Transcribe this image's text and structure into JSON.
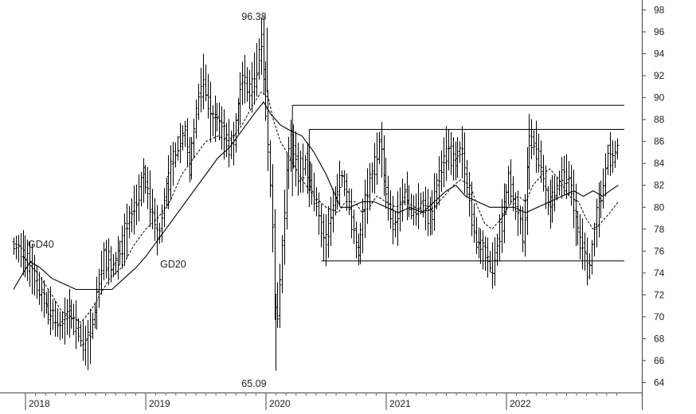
{
  "chart_data": {
    "type": "bar",
    "subtype": "ohlc-weekly",
    "title": "",
    "xlabel": "",
    "ylabel": "",
    "ylim": [
      62.6,
      99.2
    ],
    "y_ticks": [
      64,
      66,
      68,
      70,
      72,
      74,
      76,
      78,
      80,
      82,
      84,
      86,
      88,
      90,
      92,
      94,
      96,
      98
    ],
    "x_tick_labels": [
      "2018",
      "2019",
      "2020",
      "2021",
      "2022"
    ],
    "x_tick_times": [
      2018.0,
      2019.0,
      2020.0,
      2021.0,
      2022.0
    ],
    "x_range": [
      2017.9,
      2022.98
    ],
    "grid": false,
    "annotations": [
      {
        "id": "high",
        "text": "96.38",
        "t": 2019.9,
        "y": 97.1,
        "anchor": "middle"
      },
      {
        "id": "low",
        "text": "65.09",
        "t": 2019.9,
        "y": 63.6,
        "anchor": "middle"
      },
      {
        "id": "gd40",
        "text": "GD40",
        "t": 2018.02,
        "y": 76.3,
        "anchor": "start"
      },
      {
        "id": "gd20",
        "text": "GD20",
        "t": 2019.12,
        "y": 74.5,
        "anchor": "start"
      }
    ],
    "ma_labels": {
      "gd40": "GD40",
      "gd20": "GD20"
    },
    "reference_lines": [
      {
        "t1": 2020.22,
        "t2": 2022.98,
        "y": 89.3
      },
      {
        "t1": 2020.36,
        "t2": 2022.98,
        "y": 87.1
      },
      {
        "t1": 2020.46,
        "t2": 2022.98,
        "y": 75.1
      }
    ],
    "reference_verticals": [
      {
        "t": 2020.22,
        "y1": 81.0,
        "y2": 89.3
      },
      {
        "t": 2020.36,
        "y1": 80.0,
        "y2": 87.1
      }
    ],
    "price_anchors": [
      [
        2017.9,
        76.5
      ],
      [
        2017.98,
        76.0
      ],
      [
        2018.06,
        74.5
      ],
      [
        2018.14,
        72.0
      ],
      [
        2018.22,
        70.5
      ],
      [
        2018.3,
        69.0
      ],
      [
        2018.38,
        70.5
      ],
      [
        2018.46,
        68.5
      ],
      [
        2018.52,
        67.0
      ],
      [
        2018.6,
        71.0
      ],
      [
        2018.66,
        75.5
      ],
      [
        2018.74,
        74.5
      ],
      [
        2018.82,
        76.5
      ],
      [
        2018.88,
        79.0
      ],
      [
        2018.94,
        80.5
      ],
      [
        2019.0,
        83.0
      ],
      [
        2019.06,
        80.0
      ],
      [
        2019.12,
        77.0
      ],
      [
        2019.18,
        81.5
      ],
      [
        2019.26,
        85.0
      ],
      [
        2019.34,
        87.0
      ],
      [
        2019.38,
        83.5
      ],
      [
        2019.45,
        90.0
      ],
      [
        2019.5,
        92.0
      ],
      [
        2019.56,
        87.5
      ],
      [
        2019.6,
        88.5
      ],
      [
        2019.68,
        86.0
      ],
      [
        2019.74,
        85.5
      ],
      [
        2019.82,
        92.0
      ],
      [
        2019.88,
        90.5
      ],
      [
        2019.94,
        93.0
      ],
      [
        2019.98,
        95.5
      ],
      [
        2020.03,
        86.0
      ],
      [
        2020.07,
        79.0
      ],
      [
        2020.1,
        69.0
      ],
      [
        2020.14,
        74.5
      ],
      [
        2020.18,
        82.0
      ],
      [
        2020.22,
        86.5
      ],
      [
        2020.28,
        83.0
      ],
      [
        2020.34,
        84.0
      ],
      [
        2020.42,
        81.0
      ],
      [
        2020.5,
        76.5
      ],
      [
        2020.58,
        80.5
      ],
      [
        2020.64,
        83.0
      ],
      [
        2020.7,
        80.5
      ],
      [
        2020.78,
        75.5
      ],
      [
        2020.84,
        80.5
      ],
      [
        2020.92,
        84.0
      ],
      [
        2020.96,
        86.0
      ],
      [
        2021.02,
        81.0
      ],
      [
        2021.08,
        78.0
      ],
      [
        2021.16,
        81.5
      ],
      [
        2021.24,
        79.5
      ],
      [
        2021.3,
        80.5
      ],
      [
        2021.38,
        79.0
      ],
      [
        2021.46,
        83.0
      ],
      [
        2021.52,
        85.5
      ],
      [
        2021.58,
        84.0
      ],
      [
        2021.64,
        85.5
      ],
      [
        2021.7,
        81.0
      ],
      [
        2021.76,
        77.0
      ],
      [
        2021.82,
        76.0
      ],
      [
        2021.9,
        74.5
      ],
      [
        2021.98,
        79.0
      ],
      [
        2022.04,
        83.0
      ],
      [
        2022.08,
        80.0
      ],
      [
        2022.12,
        79.0
      ],
      [
        2022.16,
        77.0
      ],
      [
        2022.2,
        86.5
      ],
      [
        2022.26,
        85.5
      ],
      [
        2022.3,
        84.0
      ],
      [
        2022.36,
        80.0
      ],
      [
        2022.42,
        81.5
      ],
      [
        2022.48,
        83.0
      ],
      [
        2022.54,
        82.5
      ],
      [
        2022.6,
        78.0
      ],
      [
        2022.66,
        76.0
      ],
      [
        2022.7,
        74.0
      ],
      [
        2022.76,
        79.0
      ],
      [
        2022.82,
        82.0
      ],
      [
        2022.86,
        85.0
      ],
      [
        2022.9,
        84.5
      ],
      [
        2022.93,
        85.5
      ]
    ],
    "gd20_series": [
      [
        2017.98,
        75.5
      ],
      [
        2018.1,
        74.0
      ],
      [
        2018.22,
        72.0
      ],
      [
        2018.3,
        70.5
      ],
      [
        2018.38,
        70.0
      ],
      [
        2018.46,
        69.5
      ],
      [
        2018.54,
        70.5
      ],
      [
        2018.62,
        72.0
      ],
      [
        2018.7,
        73.5
      ],
      [
        2018.8,
        74.5
      ],
      [
        2018.9,
        76.5
      ],
      [
        2019.0,
        78.0
      ],
      [
        2019.1,
        79.0
      ],
      [
        2019.2,
        80.5
      ],
      [
        2019.3,
        83.0
      ],
      [
        2019.4,
        84.5
      ],
      [
        2019.5,
        86.0
      ],
      [
        2019.6,
        86.5
      ],
      [
        2019.7,
        86.0
      ],
      [
        2019.8,
        87.5
      ],
      [
        2019.9,
        89.5
      ],
      [
        2019.96,
        90.5
      ],
      [
        2020.02,
        90.0
      ],
      [
        2020.06,
        88.0
      ],
      [
        2020.12,
        86.0
      ],
      [
        2020.2,
        84.5
      ],
      [
        2020.3,
        82.5
      ],
      [
        2020.4,
        81.0
      ],
      [
        2020.5,
        80.0
      ],
      [
        2020.6,
        79.5
      ],
      [
        2020.66,
        80.5
      ],
      [
        2020.74,
        80.5
      ],
      [
        2020.8,
        79.5
      ],
      [
        2020.86,
        80.0
      ],
      [
        2020.92,
        81.0
      ],
      [
        2021.0,
        80.5
      ],
      [
        2021.08,
        80.0
      ],
      [
        2021.16,
        80.5
      ],
      [
        2021.24,
        80.0
      ],
      [
        2021.32,
        79.5
      ],
      [
        2021.4,
        80.0
      ],
      [
        2021.48,
        81.0
      ],
      [
        2021.56,
        82.0
      ],
      [
        2021.62,
        82.5
      ],
      [
        2021.7,
        82.0
      ],
      [
        2021.76,
        80.0
      ],
      [
        2021.82,
        78.5
      ],
      [
        2021.88,
        78.0
      ],
      [
        2021.96,
        79.0
      ],
      [
        2022.04,
        80.5
      ],
      [
        2022.1,
        81.0
      ],
      [
        2022.16,
        80.5
      ],
      [
        2022.22,
        82.0
      ],
      [
        2022.3,
        83.0
      ],
      [
        2022.36,
        83.5
      ],
      [
        2022.44,
        82.5
      ],
      [
        2022.52,
        81.0
      ],
      [
        2022.6,
        80.5
      ],
      [
        2022.66,
        79.0
      ],
      [
        2022.72,
        78.0
      ],
      [
        2022.78,
        78.5
      ],
      [
        2022.86,
        79.5
      ],
      [
        2022.93,
        80.5
      ]
    ],
    "gd40_series": [
      [
        2017.9,
        72.5
      ],
      [
        2017.98,
        74.0
      ],
      [
        2018.04,
        75.0
      ],
      [
        2018.12,
        74.5
      ],
      [
        2018.22,
        73.5
      ],
      [
        2018.32,
        73.0
      ],
      [
        2018.42,
        72.5
      ],
      [
        2018.52,
        72.5
      ],
      [
        2018.62,
        72.5
      ],
      [
        2018.72,
        72.5
      ],
      [
        2018.82,
        73.5
      ],
      [
        2018.92,
        74.5
      ],
      [
        2019.0,
        75.5
      ],
      [
        2019.1,
        77.0
      ],
      [
        2019.2,
        78.5
      ],
      [
        2019.3,
        80.0
      ],
      [
        2019.4,
        81.5
      ],
      [
        2019.5,
        83.0
      ],
      [
        2019.6,
        84.5
      ],
      [
        2019.7,
        85.5
      ],
      [
        2019.8,
        87.0
      ],
      [
        2019.9,
        88.5
      ],
      [
        2019.98,
        89.6
      ],
      [
        2020.04,
        88.5
      ],
      [
        2020.12,
        87.5
      ],
      [
        2020.2,
        87.0
      ],
      [
        2020.3,
        86.5
      ],
      [
        2020.4,
        85.0
      ],
      [
        2020.5,
        83.0
      ],
      [
        2020.56,
        81.5
      ],
      [
        2020.62,
        80.0
      ],
      [
        2020.7,
        80.0
      ],
      [
        2020.8,
        80.5
      ],
      [
        2020.9,
        80.5
      ],
      [
        2021.0,
        80.0
      ],
      [
        2021.1,
        79.5
      ],
      [
        2021.2,
        80.0
      ],
      [
        2021.3,
        79.5
      ],
      [
        2021.4,
        80.5
      ],
      [
        2021.5,
        81.5
      ],
      [
        2021.58,
        82.0
      ],
      [
        2021.66,
        81.0
      ],
      [
        2021.76,
        80.5
      ],
      [
        2021.86,
        80.0
      ],
      [
        2021.96,
        80.0
      ],
      [
        2022.06,
        80.0
      ],
      [
        2022.16,
        79.5
      ],
      [
        2022.26,
        80.0
      ],
      [
        2022.36,
        80.5
      ],
      [
        2022.46,
        81.0
      ],
      [
        2022.56,
        81.5
      ],
      [
        2022.64,
        81.0
      ],
      [
        2022.72,
        81.5
      ],
      [
        2022.8,
        81.0
      ],
      [
        2022.86,
        81.5
      ],
      [
        2022.93,
        82.0
      ]
    ]
  }
}
